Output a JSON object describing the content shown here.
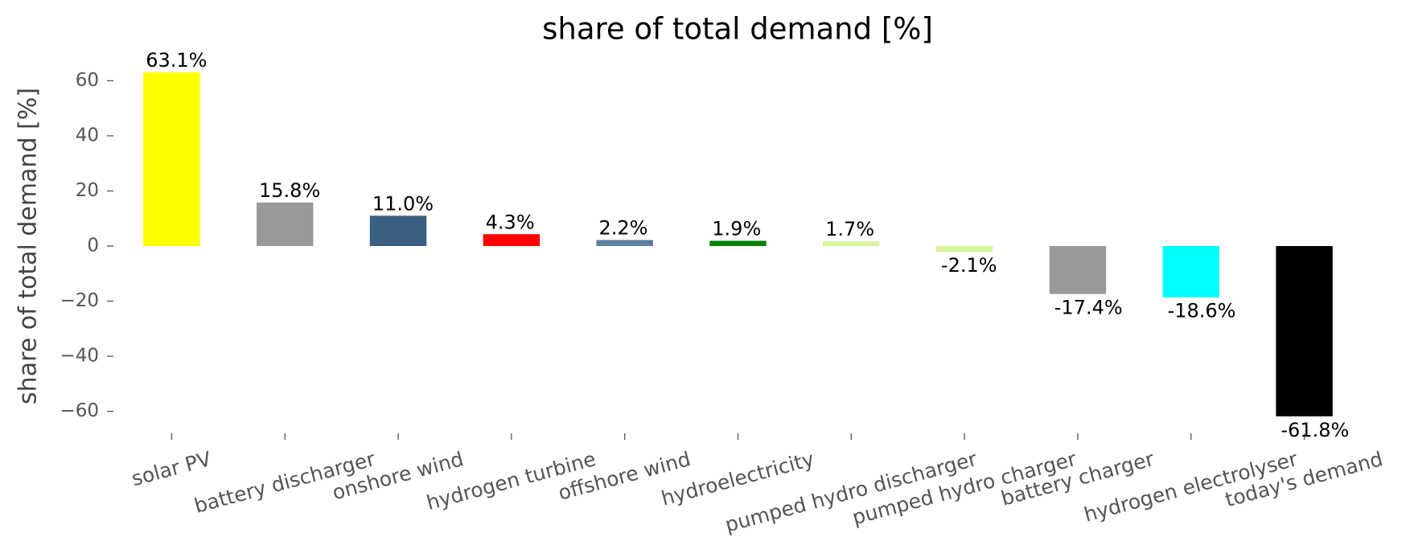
{
  "chart_data": {
    "type": "bar",
    "title": "share of total demand [%]",
    "y_label": "share of total demand [%]",
    "categories": [
      "solar PV",
      "battery discharger",
      "onshore wind",
      "hydrogen turbine",
      "offshore wind",
      "hydroelectricity",
      "pumped hydro discharger",
      "pumped hydro charger",
      "battery charger",
      "hydrogen electrolyser",
      "today's demand"
    ],
    "values": [
      63.1,
      15.8,
      11.0,
      4.3,
      2.2,
      1.9,
      1.7,
      -2.1,
      -17.4,
      -18.6,
      -61.8
    ],
    "value_labels": [
      "63.1%",
      "15.8%",
      "11.0%",
      "4.3%",
      "2.2%",
      "1.9%",
      "1.7%",
      "-2.1%",
      "-17.4%",
      "-18.6%",
      "-61.8%"
    ],
    "colors": [
      "#ffff00",
      "#999999",
      "#3a5f82",
      "#ff0000",
      "#5f7f9f",
      "#008000",
      "#d4f59a",
      "#d4f59a",
      "#999999",
      "#00ffff",
      "#000000"
    ],
    "ylim": [
      -68,
      68
    ],
    "yticks": [
      {
        "value": -60,
        "label": "−60"
      },
      {
        "value": -40,
        "label": "−40"
      },
      {
        "value": -20,
        "label": "−20"
      },
      0,
      20,
      40,
      60
    ],
    "grid": false
  }
}
